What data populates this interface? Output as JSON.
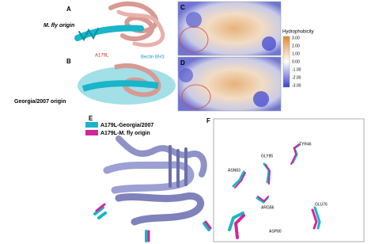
{
  "panel_a": {
    "label": "A",
    "title": "M. fly origin",
    "mutant_label": "A179L",
    "helix_label": "Beclin BH3"
  },
  "panel_b": {
    "label": "B",
    "title": "Georgia/2007 origin"
  },
  "panel_c": {
    "label": "C"
  },
  "panel_d": {
    "label": "D"
  },
  "colorbar": {
    "title": "Hydrophobicity",
    "ticks": [
      "3.00",
      "2.00",
      "1.00",
      "0.00",
      "-1.00",
      "-2.00",
      "-3.00"
    ]
  },
  "panel_e": {
    "label": "E",
    "legend": [
      "A179L-Georgia/2007",
      "A179L-M. fly origin"
    ]
  },
  "panel_f": {
    "label": "F",
    "residues": [
      "TYR46",
      "GLY85",
      "ASN83",
      "ARG86",
      "GLU76",
      "ASP80"
    ]
  }
}
